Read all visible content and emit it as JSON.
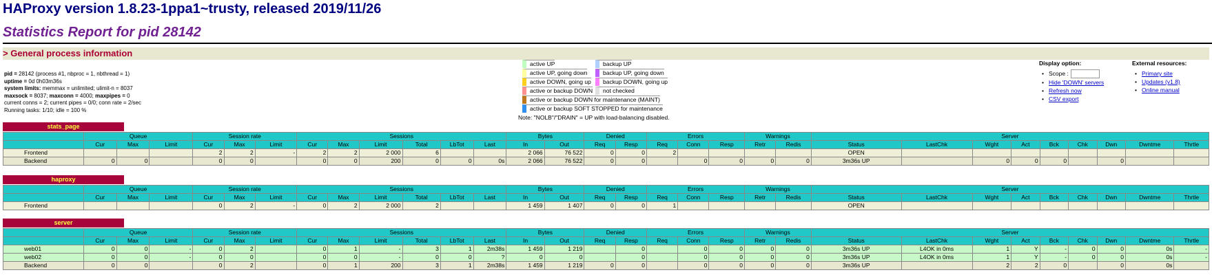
{
  "header": {
    "title": "HAProxy version 1.8.23-1ppa1~trusty, released 2019/11/26",
    "subtitle": "Statistics Report for pid 28142"
  },
  "section": {
    "title": "> General process information"
  },
  "process_info": [
    {
      "label": "pid = ",
      "value": "28142 (process #1, nbproc = 1, nbthread = 1)"
    },
    {
      "label": "uptime = ",
      "value": "0d 0h03m36s"
    },
    {
      "label": "system limits:",
      "value": " memmax = unlimited; ulimit-n = 8037"
    },
    {
      "label": "maxsock = ",
      "value": "8037; ",
      "label2": "maxconn = ",
      "value2": "4000; ",
      "label3": "maxpipes = ",
      "value3": "0"
    },
    {
      "text": "current conns = 2; current pipes = 0/0; conn rate = 2/sec"
    },
    {
      "text": "Running tasks: 1/10; idle = 100 %"
    }
  ],
  "legend": {
    "left": [
      {
        "label": "active UP",
        "color": "#c0ffc0"
      },
      {
        "label": "active UP, going down",
        "color": "#ffffa0"
      },
      {
        "label": "active DOWN, going up",
        "color": "#ffd020"
      },
      {
        "label": "active or backup DOWN",
        "color": "#ff9090"
      },
      {
        "label": "active or backup DOWN for maintenance (MAINT)",
        "color": "#c07820"
      },
      {
        "label": "active or backup SOFT STOPPED for maintenance",
        "color": "#3090f0"
      }
    ],
    "right": [
      {
        "label": "backup UP",
        "color": "#b0d0ff"
      },
      {
        "label": "backup UP, going down",
        "color": "#c060ff"
      },
      {
        "label": "backup DOWN, going up",
        "color": "#ff80ff"
      },
      {
        "label": "not checked",
        "color": "#e0e0e0"
      }
    ],
    "note": "Note: \"NOLB\"/\"DRAIN\" = UP with load-balancing disabled."
  },
  "display_option": {
    "title": "Display option:",
    "scope": "Scope :",
    "links": [
      "Hide 'DOWN' servers",
      "Refresh now",
      "CSV export"
    ]
  },
  "external": {
    "title": "External resources:",
    "links": [
      "Primary site",
      "Updates (v1.8)",
      "Online manual"
    ]
  },
  "column_groups": [
    "Queue",
    "Session rate",
    "Sessions",
    "Bytes",
    "Denied",
    "Errors",
    "Warnings",
    "Server"
  ],
  "columns": [
    "Cur",
    "Max",
    "Limit",
    "Cur",
    "Max",
    "Limit",
    "Cur",
    "Max",
    "Limit",
    "Total",
    "LbTot",
    "Last",
    "In",
    "Out",
    "Req",
    "Resp",
    "Req",
    "Conn",
    "Resp",
    "Retr",
    "Redis",
    "Status",
    "LastChk",
    "Wght",
    "Act",
    "Bck",
    "Chk",
    "Dwn",
    "Dwntme",
    "Thrtle"
  ],
  "proxies": [
    {
      "name": "stats_page",
      "rows": [
        {
          "type": "fe",
          "cells": [
            "Frontend",
            "",
            "",
            "",
            "2",
            "2",
            "-",
            "2",
            "2",
            "2 000",
            "6",
            "",
            "",
            "2 066",
            "76 522",
            "0",
            "0",
            "2",
            "",
            "",
            "",
            "",
            "OPEN",
            "",
            "",
            "",
            "",
            "",
            "",
            "",
            ""
          ]
        },
        {
          "type": "be",
          "cells": [
            "Backend",
            "0",
            "0",
            "",
            "0",
            "0",
            "",
            "0",
            "0",
            "200",
            "0",
            "0",
            "0s",
            "2 066",
            "76 522",
            "0",
            "0",
            "",
            "0",
            "0",
            "0",
            "0",
            "3m36s UP",
            "",
            "0",
            "0",
            "0",
            "",
            "0",
            "",
            ""
          ]
        }
      ]
    },
    {
      "name": "haproxy",
      "rows": [
        {
          "type": "fe",
          "cells": [
            "Frontend",
            "",
            "",
            "",
            "0",
            "2",
            "-",
            "0",
            "2",
            "2 000",
            "2",
            "",
            "",
            "1 459",
            "1 407",
            "0",
            "0",
            "1",
            "",
            "",
            "",
            "",
            "OPEN",
            "",
            "",
            "",
            "",
            "",
            "",
            "",
            ""
          ]
        }
      ]
    },
    {
      "name": "server",
      "rows": [
        {
          "type": "up",
          "cells": [
            "web01",
            "0",
            "0",
            "-",
            "0",
            "2",
            "",
            "0",
            "1",
            "-",
            "3",
            "1",
            "2m38s",
            "1 459",
            "1 219",
            "",
            "0",
            "",
            "0",
            "0",
            "0",
            "0",
            "3m36s UP",
            "L4OK in 0ms",
            "1",
            "Y",
            "-",
            "0",
            "0",
            "0s",
            "-"
          ]
        },
        {
          "type": "up",
          "cells": [
            "web02",
            "0",
            "0",
            "-",
            "0",
            "0",
            "",
            "0",
            "0",
            "-",
            "0",
            "0",
            "?",
            "0",
            "0",
            "",
            "0",
            "",
            "0",
            "0",
            "0",
            "0",
            "3m36s UP",
            "L4OK in 0ms",
            "1",
            "Y",
            "-",
            "0",
            "0",
            "0s",
            "-"
          ]
        },
        {
          "type": "be",
          "cells": [
            "Backend",
            "0",
            "0",
            "",
            "0",
            "2",
            "",
            "0",
            "1",
            "200",
            "3",
            "1",
            "2m38s",
            "1 459",
            "1 219",
            "0",
            "0",
            "",
            "0",
            "0",
            "0",
            "0",
            "3m36s UP",
            "",
            "2",
            "2",
            "0",
            "",
            "0",
            "0s",
            ""
          ]
        }
      ]
    }
  ]
}
